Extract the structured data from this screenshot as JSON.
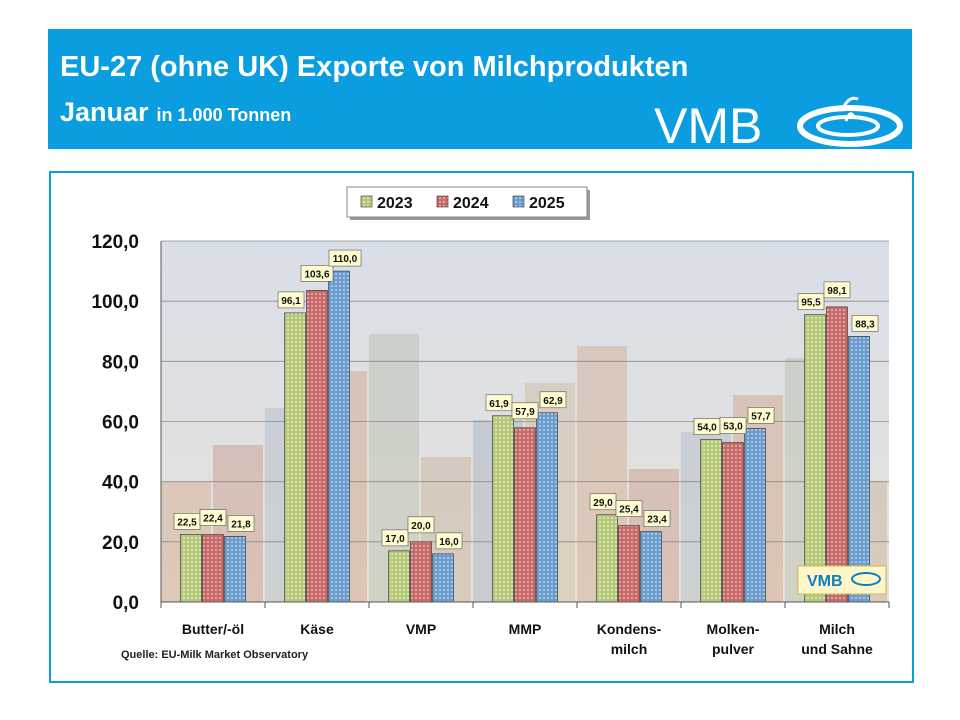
{
  "header": {
    "title": "EU-27 (ohne UK) Exporte von Milchprodukten",
    "subtitle_main": "Januar",
    "subtitle_unit": "in 1.000 Tonnen",
    "logo_text": "VMB"
  },
  "source": "Quelle: EU-Milk Market Observatory",
  "mini_logo_text": "VMB",
  "colors": {
    "header_bg": "#0a9ee0",
    "s2023": "#b5c77a",
    "s2024": "#c8696a",
    "s2025": "#6a9ccd"
  },
  "chart_data": {
    "type": "bar",
    "categories": [
      "Butter/-öl",
      "Käse",
      "VMP",
      "MMP",
      "Kondens-milch",
      "Molken-pulver",
      "Milch und Sahne"
    ],
    "category_lines": [
      [
        "Butter/-öl"
      ],
      [
        "Käse"
      ],
      [
        "VMP"
      ],
      [
        "MMP"
      ],
      [
        "Kondens-",
        "milch"
      ],
      [
        "Molken-",
        "pulver"
      ],
      [
        "Milch",
        "und Sahne"
      ]
    ],
    "series": [
      {
        "name": "2023",
        "values": [
          22.5,
          96.1,
          17.0,
          61.9,
          29.0,
          54.0,
          95.5
        ],
        "labels": [
          "22,5",
          "96,1",
          "17,0",
          "61,9",
          "29,0",
          "54,0",
          "95,5"
        ]
      },
      {
        "name": "2024",
        "values": [
          22.4,
          103.6,
          20.0,
          57.9,
          25.4,
          53.0,
          98.1
        ],
        "labels": [
          "22,4",
          "103,6",
          "20,0",
          "57,9",
          "25,4",
          "53,0",
          "98,1"
        ]
      },
      {
        "name": "2025",
        "values": [
          21.8,
          110.0,
          16.0,
          62.9,
          23.4,
          57.7,
          88.3
        ],
        "labels": [
          "21,8",
          "110,0",
          "16,0",
          "62,9",
          "23,4",
          "57,7",
          "88,3"
        ]
      }
    ],
    "ylim": [
      0,
      120
    ],
    "yticks": [
      0,
      20,
      40,
      60,
      80,
      100,
      120
    ],
    "ytick_labels": [
      "0,0",
      "20,0",
      "40,0",
      "60,0",
      "80,0",
      "100,0",
      "120,0"
    ],
    "grid": true,
    "legend": "top-center"
  }
}
